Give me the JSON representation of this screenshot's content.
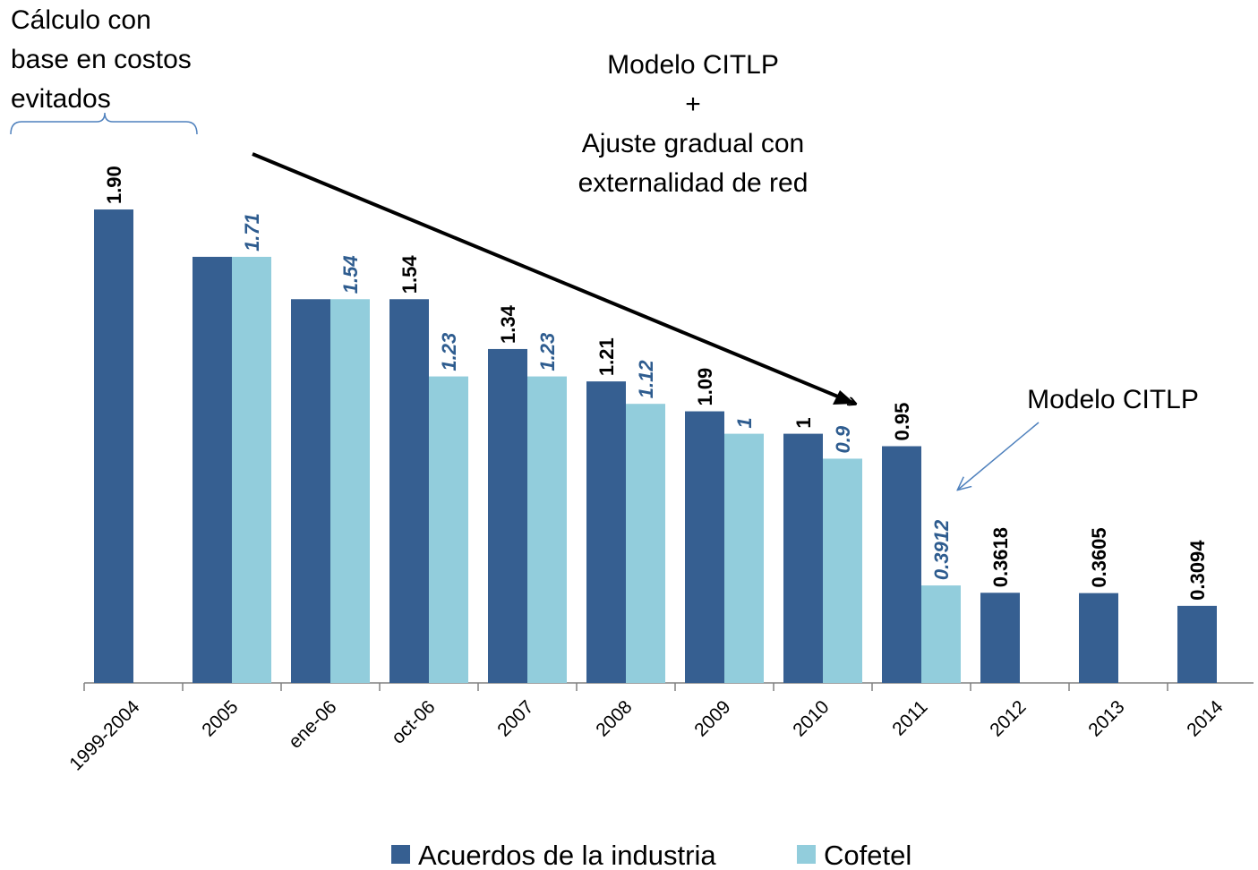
{
  "chart_data": {
    "type": "bar",
    "categories": [
      "1999-2004",
      "2005",
      "ene-06",
      "oct-06",
      "2007",
      "2008",
      "2009",
      "2010",
      "2011",
      "2012",
      "2013",
      "2014"
    ],
    "series": [
      {
        "name": "Acuerdos de la industria",
        "color": "#365f91",
        "values": [
          1.9,
          1.71,
          1.54,
          1.54,
          1.34,
          1.21,
          1.09,
          1,
          0.95,
          0.3618,
          0.3605,
          0.3094
        ],
        "value_labels": [
          "1.90",
          null,
          null,
          "1.54",
          "1.34",
          "1.21",
          "1.09",
          "1",
          "0.95",
          "0.3618",
          "0.3605",
          "0.3094"
        ]
      },
      {
        "name": "Cofetel",
        "color": "#92cddc",
        "values": [
          null,
          1.71,
          1.54,
          1.23,
          1.23,
          1.12,
          1,
          0.9,
          0.3912,
          null,
          null,
          null
        ]
      }
    ],
    "annotations": [
      {
        "lines": [
          "Cálculo con",
          "base en costos",
          "evitados"
        ]
      },
      {
        "lines": [
          "Modelo CITLP",
          "+",
          "Ajuste gradual con",
          "externalidad de red"
        ]
      },
      {
        "lines": [
          "Modelo CITLP"
        ]
      }
    ],
    "legend": "bottom"
  }
}
